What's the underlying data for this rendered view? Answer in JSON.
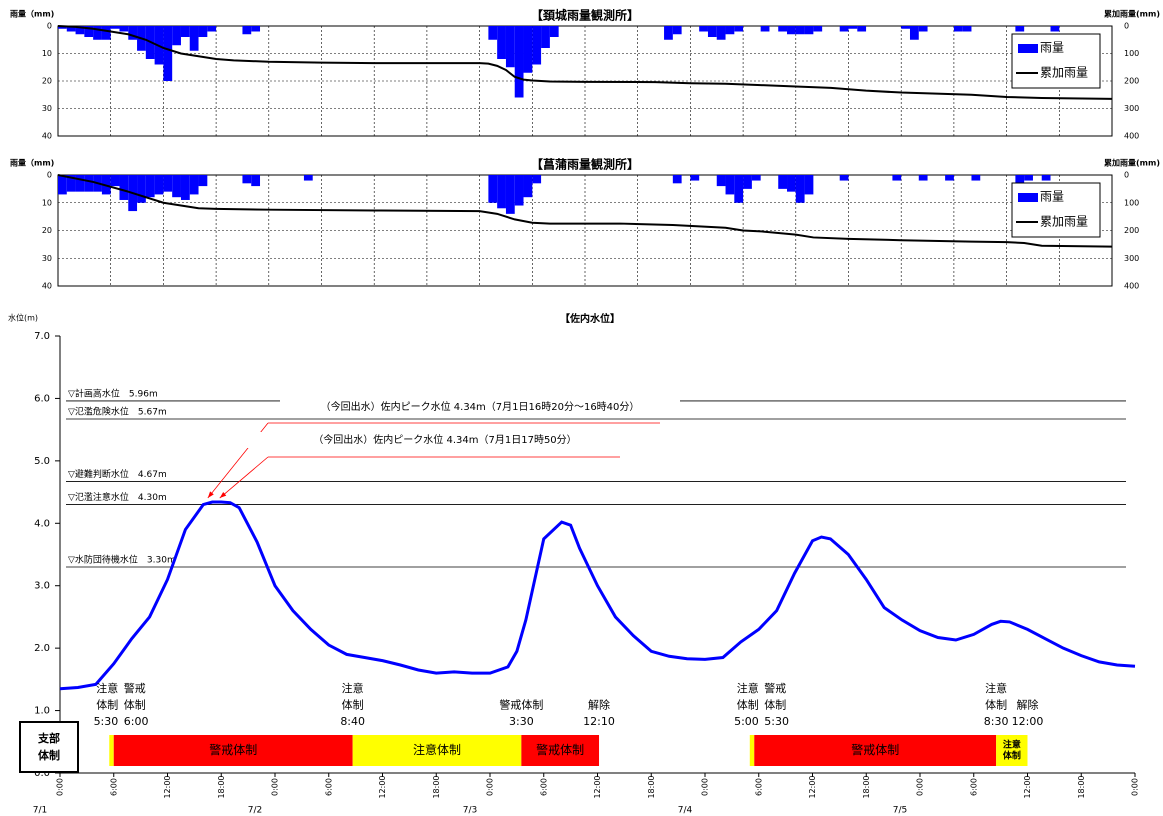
{
  "chart_data": [
    {
      "type": "combo",
      "title": "【頚城雨量観測所】",
      "ylabel": "雨量（mm)",
      "y2label": "累加雨量(mm)",
      "inverted": true,
      "legend": "upper right",
      "xlim": [
        0,
        120
      ],
      "ylim": [
        0,
        40
      ],
      "yticks": [
        0,
        10,
        20,
        30,
        40
      ],
      "y2lim": [
        0,
        400
      ],
      "y2ticks": [
        0,
        100,
        200,
        300,
        400
      ],
      "grid": true,
      "series": [
        {
          "name": "雨量",
          "color": "#0000ff",
          "kind": "bar",
          "x": [
            0,
            1,
            2,
            3,
            4,
            5,
            6,
            7,
            8,
            9,
            10,
            11,
            12,
            13,
            14,
            15,
            16,
            17,
            21,
            22,
            49,
            50,
            51,
            52,
            53,
            54,
            55,
            56,
            69,
            70,
            73,
            74,
            75,
            76,
            77,
            80,
            82,
            83,
            84,
            85,
            86,
            89,
            90,
            91,
            96,
            97,
            98,
            102,
            103,
            109,
            113
          ],
          "values": [
            1,
            2,
            3,
            4,
            5,
            5,
            1,
            2,
            5,
            9,
            12,
            14,
            20,
            7,
            4,
            9,
            4,
            2,
            3,
            2,
            5,
            12,
            15,
            26,
            17,
            14,
            8,
            4,
            5,
            3,
            2,
            4,
            5,
            3,
            2,
            2,
            2,
            3,
            3,
            3,
            2,
            2,
            1,
            2,
            1,
            5,
            2,
            2,
            2,
            2,
            2
          ]
        },
        {
          "name": "累加雨量",
          "color": "#000000",
          "kind": "line",
          "axis": "y2",
          "x": [
            0,
            2,
            4,
            6,
            8,
            10,
            12,
            14,
            16,
            18,
            20,
            24,
            30,
            36,
            48,
            49,
            50,
            51,
            52,
            53,
            54,
            55,
            56,
            60,
            68,
            72,
            76,
            80,
            84,
            88,
            92,
            96,
            100,
            104,
            108,
            112,
            120
          ],
          "values": [
            0,
            3,
            10,
            20,
            30,
            50,
            80,
            100,
            110,
            120,
            125,
            130,
            133,
            135,
            135,
            137,
            145,
            160,
            185,
            195,
            198,
            200,
            202,
            203,
            204,
            208,
            210,
            215,
            220,
            225,
            235,
            242,
            246,
            250,
            258,
            262,
            265
          ]
        }
      ]
    },
    {
      "type": "combo",
      "title": "【菖蒲雨量観測所】",
      "ylabel": "雨量（mm)",
      "y2label": "累加雨量(mm)",
      "inverted": true,
      "legend": "upper right",
      "xlim": [
        0,
        120
      ],
      "ylim": [
        0,
        40
      ],
      "yticks": [
        0,
        10,
        20,
        30,
        40
      ],
      "y2lim": [
        0,
        400
      ],
      "y2ticks": [
        0,
        100,
        200,
        300,
        400
      ],
      "grid": true,
      "series": [
        {
          "name": "雨量",
          "color": "#0000ff",
          "kind": "bar",
          "x": [
            0,
            1,
            2,
            3,
            4,
            5,
            6,
            7,
            8,
            9,
            10,
            11,
            12,
            13,
            14,
            15,
            16,
            21,
            22,
            28,
            49,
            50,
            51,
            52,
            53,
            54,
            70,
            72,
            75,
            76,
            77,
            78,
            79,
            82,
            83,
            84,
            85,
            89,
            95,
            98,
            101,
            104,
            109,
            110,
            112
          ],
          "values": [
            7,
            6,
            6,
            6,
            6,
            7,
            4,
            9,
            13,
            10,
            8,
            7,
            6,
            8,
            9,
            7,
            4,
            3,
            4,
            2,
            10,
            12,
            14,
            11,
            8,
            3,
            3,
            2,
            4,
            7,
            10,
            5,
            2,
            5,
            6,
            10,
            7,
            2,
            2,
            2,
            2,
            2,
            12,
            2,
            2
          ]
        },
        {
          "name": "累加雨量",
          "color": "#000000",
          "kind": "line",
          "axis": "y2",
          "x": [
            0,
            4,
            8,
            12,
            14,
            16,
            18,
            24,
            36,
            48,
            50,
            52,
            54,
            56,
            64,
            70,
            76,
            78,
            80,
            84,
            86,
            90,
            96,
            104,
            108,
            110,
            112,
            120
          ],
          "values": [
            0,
            25,
            60,
            100,
            110,
            120,
            122,
            125,
            128,
            130,
            140,
            160,
            172,
            175,
            175,
            180,
            190,
            200,
            203,
            215,
            225,
            230,
            235,
            240,
            242,
            245,
            255,
            258
          ]
        }
      ]
    },
    {
      "type": "line",
      "title": "【佐内水位】",
      "ylabel": "水位(m)",
      "xlim": [
        0,
        120
      ],
      "ylim": [
        0,
        7
      ],
      "yticks": [
        {
          "value": 0,
          "label": "0.0"
        },
        {
          "value": 1,
          "label": "1.0"
        },
        {
          "value": 2,
          "label": "2.0"
        },
        {
          "value": 3,
          "label": "3.0"
        },
        {
          "value": 4,
          "label": "4.0"
        },
        {
          "value": 5,
          "label": "5.0"
        },
        {
          "value": 6,
          "label": "6.0"
        },
        {
          "value": 7,
          "label": "7.0"
        }
      ],
      "xticks": [
        {
          "value": 0,
          "label": "0:00"
        },
        {
          "value": 6,
          "label": "6:00"
        },
        {
          "value": 12,
          "label": "12:00"
        },
        {
          "value": 18,
          "label": "18:00"
        },
        {
          "value": 24,
          "label": "0:00"
        },
        {
          "value": 30,
          "label": "6:00"
        },
        {
          "value": 36,
          "label": "12:00"
        },
        {
          "value": 42,
          "label": "18:00"
        },
        {
          "value": 48,
          "label": "0:00"
        },
        {
          "value": 54,
          "label": "6:00"
        },
        {
          "value": 60,
          "label": "12:00"
        },
        {
          "value": 66,
          "label": "18:00"
        },
        {
          "value": 72,
          "label": "0:00"
        },
        {
          "value": 78,
          "label": "6:00"
        },
        {
          "value": 84,
          "label": "12:00"
        },
        {
          "value": 90,
          "label": "18:00"
        },
        {
          "value": 96,
          "label": "0:00"
        },
        {
          "value": 102,
          "label": "6:00"
        },
        {
          "value": 108,
          "label": "12:00"
        },
        {
          "value": 114,
          "label": "18:00"
        },
        {
          "value": 120,
          "label": "0:00"
        }
      ],
      "xdates": [
        {
          "value": 0,
          "label": "7/1"
        },
        {
          "value": 24,
          "label": "7/2"
        },
        {
          "value": 48,
          "label": "7/3"
        },
        {
          "value": 72,
          "label": "7/4"
        },
        {
          "value": 96,
          "label": "7/5"
        }
      ],
      "series": [
        {
          "color": "#0000ff",
          "x": [
            0,
            2,
            4,
            6,
            8,
            10,
            12,
            14,
            16,
            17,
            18,
            19,
            20,
            22,
            24,
            26,
            28,
            30,
            32,
            34,
            36,
            38,
            40,
            42,
            44,
            46,
            48,
            50,
            51,
            52,
            53,
            54,
            56,
            57,
            58,
            60,
            62,
            64,
            66,
            68,
            70,
            72,
            74,
            76,
            78,
            80,
            82,
            84,
            85,
            86,
            88,
            90,
            92,
            94,
            96,
            98,
            100,
            102,
            104,
            105,
            106,
            108,
            110,
            112,
            114,
            116,
            118,
            120
          ],
          "values": [
            1.35,
            1.37,
            1.42,
            1.75,
            2.15,
            2.5,
            3.1,
            3.9,
            4.3,
            4.34,
            4.34,
            4.33,
            4.25,
            3.7,
            3.0,
            2.6,
            2.3,
            2.05,
            1.9,
            1.85,
            1.8,
            1.73,
            1.65,
            1.6,
            1.62,
            1.6,
            1.6,
            1.7,
            1.95,
            2.45,
            3.1,
            3.75,
            4.02,
            3.97,
            3.6,
            3.0,
            2.5,
            2.2,
            1.95,
            1.87,
            1.83,
            1.82,
            1.85,
            2.1,
            2.3,
            2.6,
            3.2,
            3.72,
            3.78,
            3.75,
            3.5,
            3.1,
            2.65,
            2.45,
            2.28,
            2.17,
            2.13,
            2.22,
            2.38,
            2.43,
            2.42,
            2.3,
            2.15,
            2.0,
            1.88,
            1.78,
            1.73,
            1.71
          ]
        }
      ],
      "reference_lines": [
        {
          "value": 5.96,
          "label": "▽計画高水位　5.96m"
        },
        {
          "value": 5.67,
          "label": "▽氾濫危険水位　5.67m"
        },
        {
          "value": 4.67,
          "label": "▽避難判断水位　4.67m"
        },
        {
          "value": 4.3,
          "label": "▽氾濫注意水位　4.30m"
        },
        {
          "value": 3.3,
          "label": "▽水防団待機水位　3.30m"
        }
      ],
      "annotations": [
        {
          "text": "（今回出水）佐内ピーク水位 4.34m（7月1日16時20分～16時40分）",
          "color": "#ff0000",
          "at": [
            16.5,
            4.34
          ]
        },
        {
          "text": "（今回出水）佐内ピーク水位 4.34m（7月1日17時50分）",
          "color": "#ff0000",
          "at": [
            17.83,
            4.34
          ]
        }
      ],
      "regime": {
        "title": [
          "支部",
          "体制"
        ],
        "segments": [
          {
            "start": 5.5,
            "end": 6,
            "color": "#ffff00",
            "label": [],
            "event": [
              "注意",
              "体制",
              "5:30"
            ]
          },
          {
            "start": 6,
            "end": 32.67,
            "color": "#ff0000",
            "label": [
              "警戒体制"
            ],
            "event": [
              "警戒",
              "体制",
              "6:00"
            ]
          },
          {
            "start": 32.67,
            "end": 51.5,
            "color": "#ffff00",
            "label": [
              "注意体制"
            ],
            "event": [
              "注意",
              "体制",
              "8:40"
            ]
          },
          {
            "start": 51.5,
            "end": 60.17,
            "color": "#ff0000",
            "label": [
              "警戒体制"
            ],
            "event": [
              "警戒体制",
              "3:30"
            ]
          },
          {
            "start": 77,
            "end": 77.5,
            "color": "#ffff00",
            "label": [],
            "event": [
              "注意",
              "体制",
              "5:00"
            ]
          },
          {
            "start": 77.5,
            "end": 104.5,
            "color": "#ff0000",
            "label": [
              "警戒体制"
            ],
            "event": [
              "警戒",
              "体制",
              "5:30"
            ]
          },
          {
            "start": 104.5,
            "end": 108,
            "color": "#ffff00",
            "label": [
              "注意",
              "体制"
            ],
            "event": [
              "注意",
              "体制",
              "8:30"
            ]
          }
        ],
        "releases": [
          {
            "at": 60.17,
            "event": [
              "解除",
              "12:10"
            ]
          },
          {
            "at": 108,
            "event": [
              "解除",
              "12:00"
            ]
          }
        ]
      }
    }
  ]
}
